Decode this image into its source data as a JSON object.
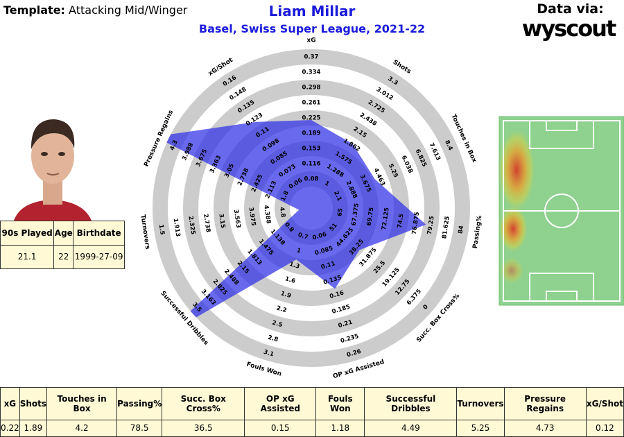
{
  "header": {
    "template_label": "Template:",
    "template": "Attacking Mid/Winger",
    "title": "Liam Millar",
    "subtitle": "Basel, Swiss Super League, 2021-22",
    "source_label": "Data via:",
    "source": "wyscout"
  },
  "player_table": {
    "headers": [
      "90s Played",
      "Age",
      "Birthdate"
    ],
    "row": [
      21.1,
      22,
      "1999-27-09"
    ]
  },
  "chart_data": {
    "type": "radar",
    "categories": [
      "xG",
      "Shots",
      "Touches in Box",
      "Passing%",
      "Succ. Box Cross%",
      "OP xG Assisted",
      "Fouls Won",
      "Successful Dribbles",
      "Turnovers",
      "Pressure Regains",
      "xG/Shot"
    ],
    "axis_ticks": [
      [
        0.08,
        0.116,
        0.153,
        0.189,
        0.225,
        0.261,
        0.298,
        0.334,
        0.37
      ],
      [
        1,
        1.288,
        1.575,
        1.862,
        2.15,
        2.438,
        2.725,
        3.012,
        3.3
      ],
      [
        2.1,
        2.888,
        3.675,
        4.463,
        5.25,
        6.038,
        6.825,
        7.613,
        8.4
      ],
      [
        65,
        67.375,
        69.75,
        72.125,
        74.5,
        76.875,
        79.25,
        81.625,
        84
      ],
      [
        51,
        44.625,
        38.25,
        31.875,
        25.5,
        19.125,
        12.75,
        6.375,
        0
      ],
      [
        0.06,
        0.085,
        0.11,
        0.135,
        0.16,
        0.185,
        0.21,
        0.235,
        0.26
      ],
      [
        0.7,
        1,
        1.3,
        1.6,
        1.9,
        2.2,
        2.5,
        2.8,
        3.1
      ],
      [
        0.8,
        1.138,
        1.475,
        1.813,
        2.15,
        2.488,
        2.825,
        3.163,
        3.5
      ],
      [
        4.8,
        4.388,
        3.975,
        3.563,
        3.15,
        2.738,
        2.325,
        1.913,
        1.5
      ],
      [
        1.8,
        2.113,
        2.425,
        2.738,
        3.05,
        3.363,
        3.675,
        3.988,
        4.3
      ],
      [
        0.06,
        0.073,
        0.085,
        0.098,
        0.11,
        0.123,
        0.135,
        0.148,
        0.16
      ]
    ],
    "values": [
      0.22,
      1.89,
      4.2,
      78.5,
      36.5,
      0.15,
      1.18,
      4.49,
      5.25,
      4.73,
      0.12
    ],
    "color": "#2f2fe8"
  }
}
